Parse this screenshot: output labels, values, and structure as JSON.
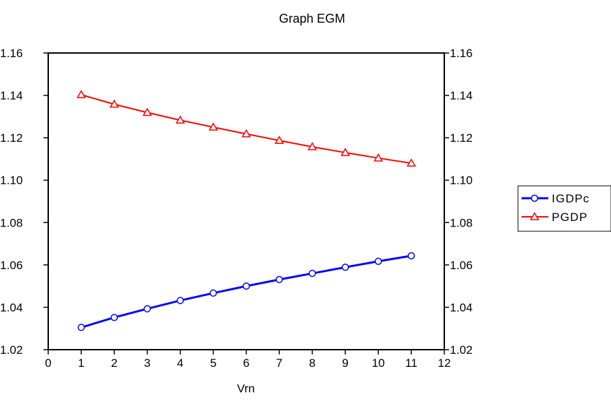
{
  "chart_data": {
    "type": "line",
    "title": "Graph EGM",
    "xlabel": "Vrn",
    "ylabel": "",
    "xlim": [
      0,
      12
    ],
    "ylim": [
      1.02,
      1.16
    ],
    "x_ticks": [
      "0",
      "1",
      "2",
      "3",
      "4",
      "5",
      "6",
      "7",
      "8",
      "9",
      "10",
      "11",
      "12"
    ],
    "y_ticks": [
      "1.02",
      "1.04",
      "1.06",
      "1.08",
      "1.10",
      "1.12",
      "1.14",
      "1.16"
    ],
    "x": [
      1,
      2,
      3,
      4,
      5,
      6,
      7,
      8,
      9,
      10,
      11
    ],
    "series": [
      {
        "name": "IGDPc",
        "color": "#0000ff",
        "marker": "circle",
        "values": [
          1.0305,
          1.0352,
          1.0393,
          1.0432,
          1.0467,
          1.05,
          1.0531,
          1.056,
          1.0589,
          1.0617,
          1.0643
        ]
      },
      {
        "name": "PGDP",
        "color": "#ff0000",
        "marker": "triangle",
        "values": [
          1.1403,
          1.1358,
          1.1319,
          1.1283,
          1.125,
          1.1218,
          1.1187,
          1.1157,
          1.113,
          1.1104,
          1.108
        ]
      }
    ],
    "grid": false,
    "legend_position": "right"
  }
}
